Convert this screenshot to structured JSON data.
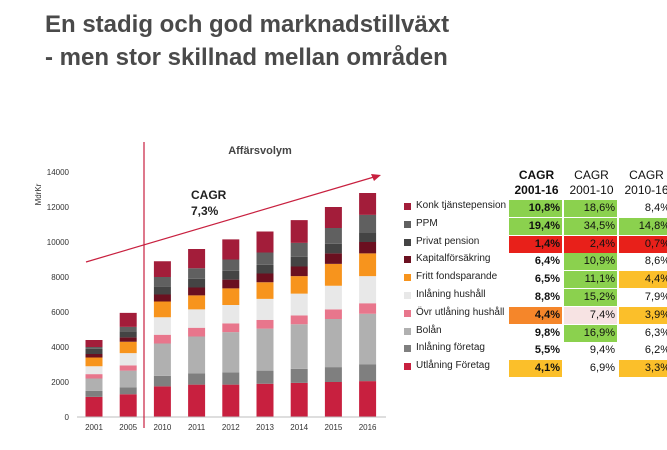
{
  "title_line1": "En stadig och god marknadstillväxt",
  "title_line2": "- men stor skillnad mellan områden",
  "chart_data": {
    "type": "bar",
    "stacked": true,
    "title": "Affärsvolym",
    "ylabel": "MdrKr",
    "ylim": [
      0,
      14000
    ],
    "yticks": [
      0,
      2000,
      4000,
      6000,
      8000,
      10000,
      12000,
      14000
    ],
    "categories": [
      "2001",
      "2005",
      "2010",
      "2011",
      "2012",
      "2013",
      "2014",
      "2015",
      "2016"
    ],
    "annotation": {
      "label": "CAGR",
      "value": "7,3%"
    },
    "series": [
      {
        "name": "Utlåning Företag",
        "color": "#c8203f",
        "values": [
          1150,
          1300,
          1750,
          1850,
          1850,
          1900,
          1950,
          2000,
          2050
        ]
      },
      {
        "name": "Inlåning företag",
        "color": "#7f7f7f",
        "values": [
          350,
          400,
          600,
          650,
          700,
          750,
          800,
          850,
          950
        ]
      },
      {
        "name": "Bolån",
        "color": "#b0b0b0",
        "values": [
          700,
          950,
          1850,
          2100,
          2300,
          2400,
          2550,
          2750,
          2900
        ]
      },
      {
        "name": "Övr utlåning hushåll",
        "color": "#e8768c",
        "values": [
          250,
          300,
          500,
          500,
          500,
          500,
          500,
          550,
          600
        ]
      },
      {
        "name": "Inlåning hushåll",
        "color": "#e8e8e8",
        "values": [
          450,
          700,
          1000,
          1050,
          1050,
          1200,
          1250,
          1350,
          1550
        ]
      },
      {
        "name": "Fritt fondsparande",
        "color": "#f7941d",
        "values": [
          500,
          650,
          900,
          800,
          950,
          950,
          1000,
          1250,
          1300
        ]
      },
      {
        "name": "Kapitalförsäkring",
        "color": "#6b1020",
        "values": [
          200,
          250,
          400,
          450,
          500,
          500,
          550,
          600,
          650
        ]
      },
      {
        "name": "Privat pension",
        "color": "#444444",
        "values": [
          300,
          350,
          450,
          500,
          500,
          500,
          550,
          550,
          550
        ]
      },
      {
        "name": "PPM",
        "color": "#606060",
        "values": [
          100,
          250,
          550,
          600,
          650,
          700,
          800,
          900,
          1000
        ]
      },
      {
        "name": "Konk tjänstepension",
        "color": "#a31d3a",
        "values": [
          400,
          800,
          900,
          1100,
          1150,
          1200,
          1300,
          1200,
          1250
        ]
      }
    ]
  },
  "cagr_table": {
    "headers": [
      {
        "line1": "CAGR",
        "line2": "2001-16",
        "bold": true
      },
      {
        "line1": "CAGR",
        "line2": "2001-10",
        "bold": false
      },
      {
        "line1": "CAGR",
        "line2": "2010-16",
        "bold": false
      }
    ],
    "rows": [
      {
        "label": "Konk tjänstepension",
        "cells": [
          {
            "v": "10,8%",
            "c": "#8bd14e"
          },
          {
            "v": "18,6%",
            "c": "#8bd14e"
          },
          {
            "v": "8,4%",
            "c": ""
          }
        ]
      },
      {
        "label": "PPM",
        "cells": [
          {
            "v": "19,4%",
            "c": "#8bd14e"
          },
          {
            "v": "34,5%",
            "c": "#8bd14e"
          },
          {
            "v": "14,8%",
            "c": "#8bd14e"
          }
        ]
      },
      {
        "label": "Privat pension",
        "cells": [
          {
            "v": "1,4%",
            "c": "#e8201a"
          },
          {
            "v": "2,4%",
            "c": "#e8201a"
          },
          {
            "v": "0,7%",
            "c": "#e8201a"
          }
        ]
      },
      {
        "label": "Kapitalförsäkring",
        "cells": [
          {
            "v": "6,4%",
            "c": ""
          },
          {
            "v": "10,9%",
            "c": "#8bd14e"
          },
          {
            "v": "8,6%",
            "c": ""
          }
        ]
      },
      {
        "label": "Fritt fondsparande",
        "cells": [
          {
            "v": "6,5%",
            "c": ""
          },
          {
            "v": "11,1%",
            "c": "#8bd14e"
          },
          {
            "v": "4,4%",
            "c": "#fbbf2a"
          }
        ]
      },
      {
        "label": "Inlåning hushåll",
        "cells": [
          {
            "v": "8,8%",
            "c": ""
          },
          {
            "v": "15,2%",
            "c": "#8bd14e"
          },
          {
            "v": "7,9%",
            "c": ""
          }
        ]
      },
      {
        "label": "Övr utlåning hushåll",
        "cells": [
          {
            "v": "4,4%",
            "c": "#f5862a"
          },
          {
            "v": "7,4%",
            "c": "#f7e3e3"
          },
          {
            "v": "3,9%",
            "c": "#fbbf2a"
          }
        ]
      },
      {
        "label": "Bolån",
        "cells": [
          {
            "v": "9,8%",
            "c": ""
          },
          {
            "v": "16,9%",
            "c": "#8bd14e"
          },
          {
            "v": "6,3%",
            "c": ""
          }
        ]
      },
      {
        "label": "Inlåning företag",
        "cells": [
          {
            "v": "5,5%",
            "c": ""
          },
          {
            "v": "9,4%",
            "c": ""
          },
          {
            "v": "6,2%",
            "c": ""
          }
        ]
      },
      {
        "label": "Utlåning Företag",
        "cells": [
          {
            "v": "4,1%",
            "c": "#fbbf2a"
          },
          {
            "v": "6,9%",
            "c": ""
          },
          {
            "v": "3,3%",
            "c": "#fbbf2a"
          }
        ]
      }
    ]
  }
}
